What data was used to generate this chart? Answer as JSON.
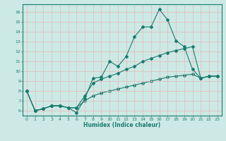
{
  "title": "",
  "xlabel": "Humidex (Indice chaleur)",
  "ylabel": "",
  "bg_color": "#cce9e5",
  "grid_color": "#aad4cf",
  "line_color": "#1a7a6e",
  "xlim": [
    -0.5,
    23.5
  ],
  "ylim": [
    5.5,
    16.8
  ],
  "xticks": [
    0,
    1,
    2,
    3,
    4,
    5,
    6,
    7,
    8,
    9,
    10,
    11,
    12,
    13,
    14,
    15,
    16,
    17,
    18,
    19,
    20,
    21,
    22,
    23
  ],
  "yticks": [
    6,
    7,
    8,
    9,
    10,
    11,
    12,
    13,
    14,
    15,
    16
  ],
  "line1_x": [
    0,
    1,
    2,
    3,
    4,
    5,
    6,
    7,
    8,
    9,
    10,
    11,
    12,
    13,
    14,
    15,
    16,
    17,
    18,
    19,
    20,
    21,
    22,
    23
  ],
  "line1_y": [
    8.0,
    6.0,
    6.2,
    6.5,
    6.5,
    6.3,
    5.8,
    7.2,
    9.3,
    9.4,
    11.0,
    10.5,
    11.5,
    13.5,
    14.5,
    14.5,
    16.3,
    15.2,
    13.1,
    12.5,
    10.2,
    9.3,
    9.5,
    9.5
  ],
  "line2_x": [
    0,
    1,
    2,
    3,
    4,
    5,
    6,
    7,
    8,
    9,
    10,
    11,
    12,
    13,
    14,
    15,
    16,
    17,
    18,
    19,
    20,
    21,
    22,
    23
  ],
  "line2_y": [
    8.0,
    6.0,
    6.2,
    6.5,
    6.5,
    6.3,
    6.3,
    7.5,
    8.8,
    9.2,
    9.5,
    9.8,
    10.2,
    10.5,
    11.0,
    11.3,
    11.6,
    11.9,
    12.1,
    12.3,
    12.5,
    9.3,
    9.5,
    9.5
  ],
  "line3_x": [
    0,
    1,
    2,
    3,
    4,
    5,
    6,
    7,
    8,
    9,
    10,
    11,
    12,
    13,
    14,
    15,
    16,
    17,
    18,
    19,
    20,
    21,
    22,
    23
  ],
  "line3_y": [
    8.0,
    6.0,
    6.2,
    6.5,
    6.5,
    6.3,
    6.3,
    7.0,
    7.5,
    7.8,
    8.0,
    8.2,
    8.4,
    8.6,
    8.8,
    9.0,
    9.2,
    9.4,
    9.5,
    9.6,
    9.7,
    9.3,
    9.5,
    9.5
  ]
}
